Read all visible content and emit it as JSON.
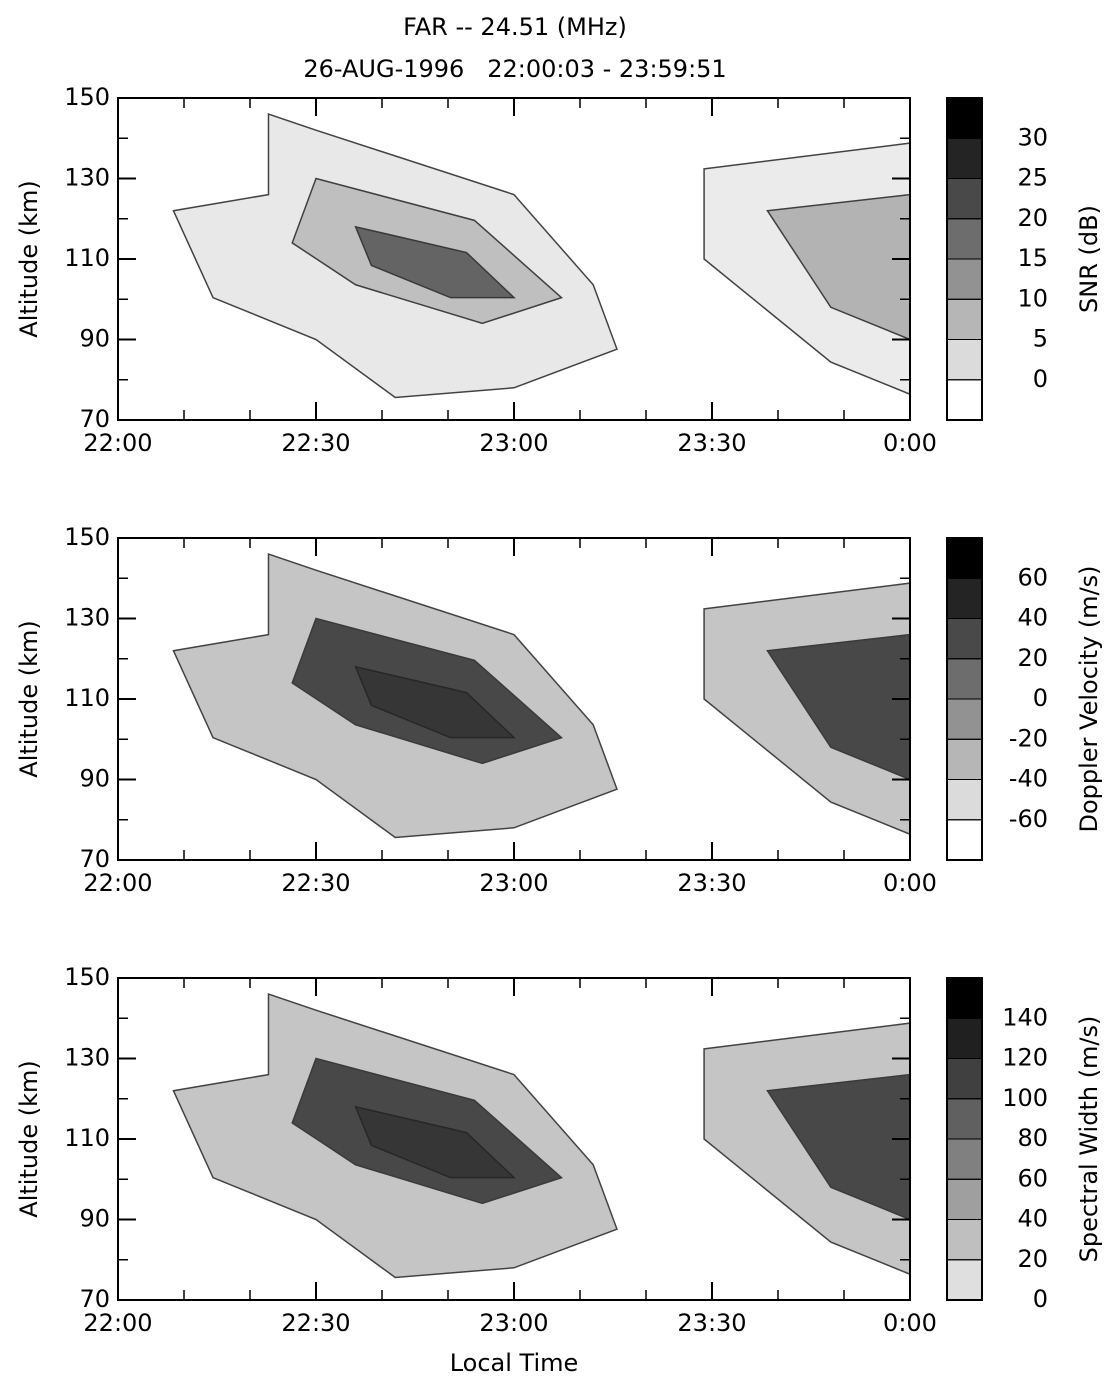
{
  "chart_data": [
    {
      "type": "heatmap",
      "title": "FAR -- 24.51 (MHz)",
      "subtitle": "26-AUG-1996   22:00:03 - 23:59:51",
      "ylabel": "Altitude (km)",
      "xlim": [
        22,
        24
      ],
      "ylim": [
        70,
        150
      ],
      "xticks": [
        {
          "value": 22,
          "label": "22:00"
        },
        {
          "value": 22.5,
          "label": "22:30"
        },
        {
          "value": 23,
          "label": "23:00"
        },
        {
          "value": 23.5,
          "label": "23:30"
        },
        {
          "value": 24,
          "label": "0:00"
        }
      ],
      "yticks": [
        70,
        90,
        110,
        130,
        150
      ],
      "colorbar": {
        "label": "SNR (dB)",
        "clim": [
          -5,
          35
        ],
        "ticks": [
          0,
          5,
          10,
          15,
          20,
          25,
          30
        ]
      }
    },
    {
      "type": "heatmap",
      "ylabel": "Altitude (km)",
      "xlim": [
        22,
        24
      ],
      "ylim": [
        70,
        150
      ],
      "xticks": [
        {
          "value": 22,
          "label": "22:00"
        },
        {
          "value": 22.5,
          "label": "22:30"
        },
        {
          "value": 23,
          "label": "23:00"
        },
        {
          "value": 23.5,
          "label": "23:30"
        },
        {
          "value": 24,
          "label": "0:00"
        }
      ],
      "yticks": [
        70,
        90,
        110,
        130,
        150
      ],
      "colorbar": {
        "label": "Doppler Velocity (m/s)",
        "clim": [
          -80,
          80
        ],
        "ticks": [
          -60,
          -40,
          -20,
          0,
          20,
          40,
          60
        ]
      }
    },
    {
      "type": "heatmap",
      "ylabel": "Altitude (km)",
      "xlabel": "Local Time",
      "xlim": [
        22,
        24
      ],
      "ylim": [
        70,
        150
      ],
      "xticks": [
        {
          "value": 22,
          "label": "22:00"
        },
        {
          "value": 22.5,
          "label": "22:30"
        },
        {
          "value": 23,
          "label": "23:00"
        },
        {
          "value": 23.5,
          "label": "23:30"
        },
        {
          "value": 24,
          "label": "0:00"
        }
      ],
      "yticks": [
        70,
        90,
        110,
        130,
        150
      ],
      "colorbar": {
        "label": "Spectral Width (m/s)",
        "clim": [
          0,
          160
        ],
        "ticks": [
          0,
          20,
          40,
          60,
          80,
          100,
          120,
          140
        ]
      }
    }
  ]
}
